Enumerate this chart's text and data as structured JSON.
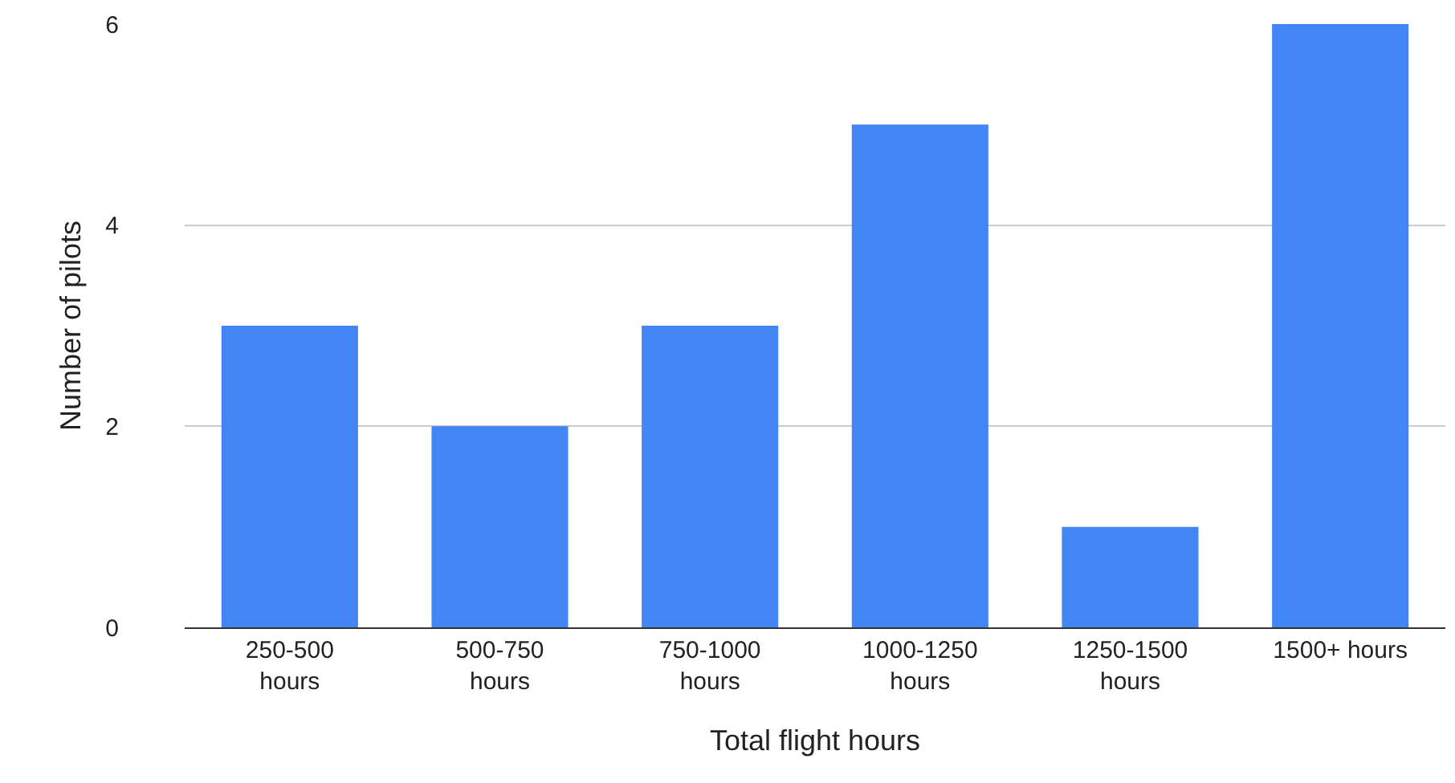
{
  "chart_data": {
    "type": "bar",
    "xlabel": "Total flight hours",
    "ylabel": "Number of pilots",
    "categories": [
      "250-500 hours",
      "500-750 hours",
      "750-1000 hours",
      "1000-1250 hours",
      "1250-1500 hours",
      "1500+ hours"
    ],
    "values": [
      3,
      2,
      3,
      5,
      1,
      6
    ],
    "color": "#4285f4",
    "ylim": [
      0,
      6
    ],
    "yticks": [
      0,
      2,
      4,
      6
    ],
    "grid": "y",
    "legend": false
  }
}
